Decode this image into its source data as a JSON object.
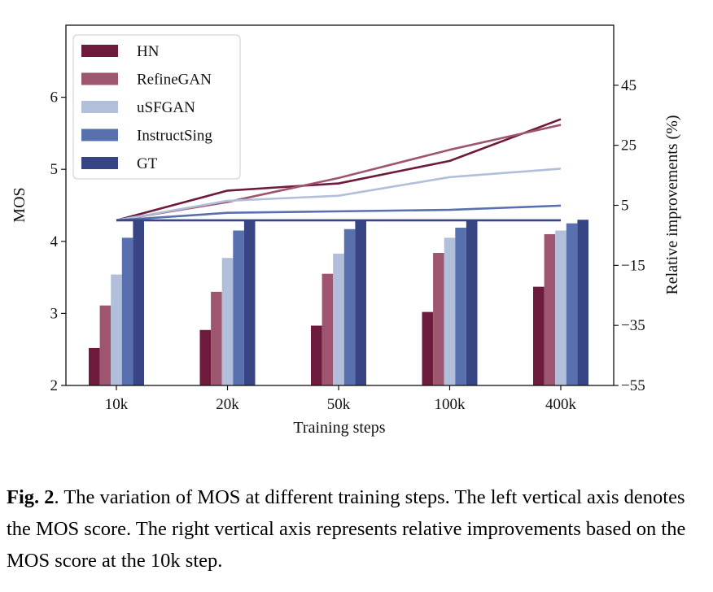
{
  "chart_data": {
    "type": "bar",
    "xlabel": "Training steps",
    "ylabel": "MOS",
    "ylim": [
      2,
      7
    ],
    "yticks": [
      2,
      3,
      4,
      5,
      6
    ],
    "y2label": "Relative improvements (%)",
    "y2lim": [
      -55,
      65
    ],
    "y2ticks": [
      -55,
      -35,
      -15,
      5,
      25,
      45
    ],
    "grid": false,
    "legend_position": "top-left",
    "categories": [
      "10k",
      "20k",
      "50k",
      "100k",
      "400k"
    ],
    "series": [
      {
        "name": "HN",
        "color": "#6e1a3c",
        "values": [
          2.52,
          2.77,
          2.83,
          3.02,
          3.37
        ]
      },
      {
        "name": "RefineGAN",
        "color": "#9e5670",
        "values": [
          3.11,
          3.3,
          3.55,
          3.84,
          4.1
        ]
      },
      {
        "name": "uSFGAN",
        "color": "#b1bfdb",
        "values": [
          3.54,
          3.77,
          3.83,
          4.05,
          4.15
        ]
      },
      {
        "name": "InstructSing",
        "color": "#5870ad",
        "values": [
          4.05,
          4.15,
          4.17,
          4.19,
          4.25
        ]
      },
      {
        "name": "GT",
        "color": "#374584",
        "values": [
          4.3,
          4.3,
          4.3,
          4.3,
          4.3
        ]
      }
    ],
    "improvement_series": [
      {
        "name": "HN",
        "color": "#6e1a3c",
        "values": [
          0,
          9.9,
          12.3,
          19.8,
          33.7
        ]
      },
      {
        "name": "RefineGAN",
        "color": "#9e5670",
        "values": [
          0,
          6.1,
          14.1,
          23.5,
          31.8
        ]
      },
      {
        "name": "uSFGAN",
        "color": "#b1bfdb",
        "values": [
          0,
          6.5,
          8.2,
          14.4,
          17.2
        ]
      },
      {
        "name": "InstructSing",
        "color": "#5870ad",
        "values": [
          0,
          2.5,
          3.0,
          3.5,
          4.9
        ]
      },
      {
        "name": "GT",
        "color": "#374584",
        "values": [
          0,
          0,
          0,
          0,
          0
        ]
      }
    ]
  },
  "caption": {
    "label": "Fig. 2",
    "text": ". The variation of MOS at different training steps. The left vertical axis denotes the MOS score. The right vertical axis represents relative improvements based on the MOS score at the 10k step."
  }
}
